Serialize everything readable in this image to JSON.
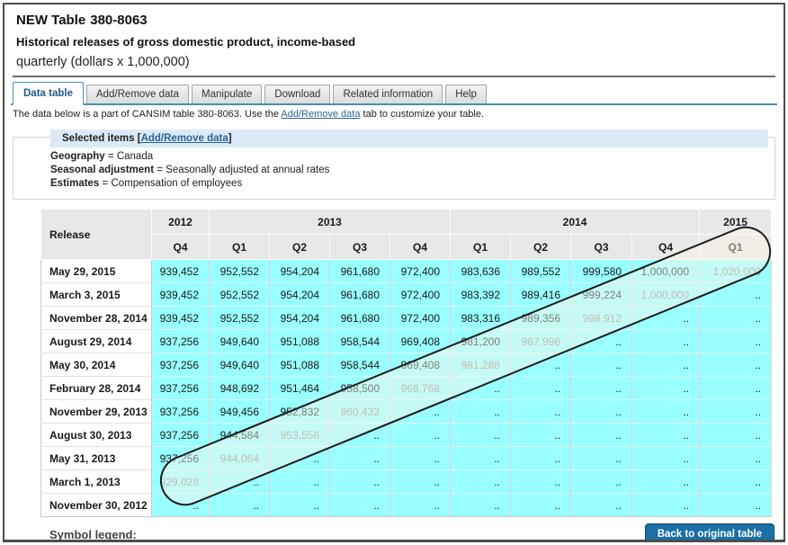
{
  "page": {
    "title_prefix": "NEW Table",
    "title_number": "380-8063",
    "subtitle": "Historical releases of gross domestic product, income-based",
    "unit_line": "quarterly (dollars x 1,000,000)"
  },
  "tabs": [
    {
      "label": "Data table",
      "active": true
    },
    {
      "label": "Add/Remove data",
      "active": false
    },
    {
      "label": "Manipulate",
      "active": false
    },
    {
      "label": "Download",
      "active": false
    },
    {
      "label": "Related information",
      "active": false
    },
    {
      "label": "Help",
      "active": false
    }
  ],
  "notice": {
    "pre": "The data below is a part of CANSIM table  380-8063.  Use the",
    "link": "Add/Remove data",
    "post": "tab to customize your table."
  },
  "selected_items": {
    "legend_pre": "Selected items [",
    "legend_link": "Add/Remove data",
    "legend_post": "]",
    "items": [
      {
        "label": "Geography",
        "value": "Canada"
      },
      {
        "label": "Seasonal adjustment",
        "value": "Seasonally adjusted at annual rates"
      },
      {
        "label": "Estimates",
        "value": "Compensation of employees"
      }
    ]
  },
  "table": {
    "corner_label": "Release",
    "year_groups": [
      {
        "year": "2012",
        "quarters": [
          "Q4"
        ]
      },
      {
        "year": "2013",
        "quarters": [
          "Q1",
          "Q2",
          "Q3",
          "Q4"
        ]
      },
      {
        "year": "2014",
        "quarters": [
          "Q1",
          "Q2",
          "Q3",
          "Q4"
        ]
      },
      {
        "year": "2015",
        "quarters": [
          "Q1"
        ]
      }
    ],
    "missing_symbol": "..",
    "rows": [
      {
        "release": "May 29, 2015",
        "values": [
          "939,452",
          "952,552",
          "954,204",
          "961,680",
          "972,400",
          "983,636",
          "989,552",
          "999,580",
          "1,000,000",
          "1,020,000"
        ],
        "muted_index": 9
      },
      {
        "release": "March 3, 2015",
        "values": [
          "939,452",
          "952,552",
          "954,204",
          "961,680",
          "972,400",
          "983,392",
          "989,416",
          "999,224",
          "1,000,000",
          ".."
        ],
        "muted_index": 8
      },
      {
        "release": "November 28, 2014",
        "values": [
          "939,452",
          "952,552",
          "954,204",
          "961,680",
          "972,400",
          "983,316",
          "989,356",
          "998,912",
          "..",
          ".."
        ],
        "muted_index": 7
      },
      {
        "release": "August 29, 2014",
        "values": [
          "937,256",
          "949,640",
          "951,088",
          "958,544",
          "969,408",
          "981,200",
          "987,996",
          "..",
          "..",
          ".."
        ],
        "muted_index": 6
      },
      {
        "release": "May 30, 2014",
        "values": [
          "937,256",
          "949,640",
          "951,088",
          "958,544",
          "969,408",
          "981,288",
          "..",
          "..",
          "..",
          ".."
        ],
        "muted_index": 5
      },
      {
        "release": "February 28, 2014",
        "values": [
          "937,256",
          "948,692",
          "951,464",
          "958,500",
          "968,768",
          "..",
          "..",
          "..",
          "..",
          ".."
        ],
        "muted_index": 4
      },
      {
        "release": "November 29, 2013",
        "values": [
          "937,256",
          "949,456",
          "952,832",
          "960,432",
          "..",
          "..",
          "..",
          "..",
          "..",
          ".."
        ],
        "muted_index": 3
      },
      {
        "release": "August 30, 2013",
        "values": [
          "937,256",
          "944,584",
          "953,556",
          "..",
          "..",
          "..",
          "..",
          "..",
          "..",
          ".."
        ],
        "muted_index": 2
      },
      {
        "release": "May 31, 2013",
        "values": [
          "937,256",
          "944,064",
          "..",
          "..",
          "..",
          "..",
          "..",
          "..",
          "..",
          ".."
        ],
        "muted_index": 1
      },
      {
        "release": "March 1, 2013",
        "values": [
          "929,028",
          "..",
          "..",
          "..",
          "..",
          "..",
          "..",
          "..",
          "..",
          ".."
        ],
        "muted_index": 0
      },
      {
        "release": "November 30, 2012",
        "values": [
          "..",
          "..",
          "..",
          "..",
          "..",
          "..",
          "..",
          "..",
          "..",
          ".."
        ],
        "muted_index": -1
      }
    ]
  },
  "footer": {
    "symbol_legend_label": "Symbol legend:",
    "back_button_label": "Back to original table"
  },
  "colors": {
    "highlight_cell": "#99ffff",
    "header_cell": "#e8e8e8",
    "tab_accent": "#4e8fae",
    "active_tab_text": "#1f5c8b",
    "link": "#2a6496",
    "legend_strip": "#dce9f7",
    "button_bg": "#1b6fa6",
    "muted_value": "#8f8f8f"
  }
}
